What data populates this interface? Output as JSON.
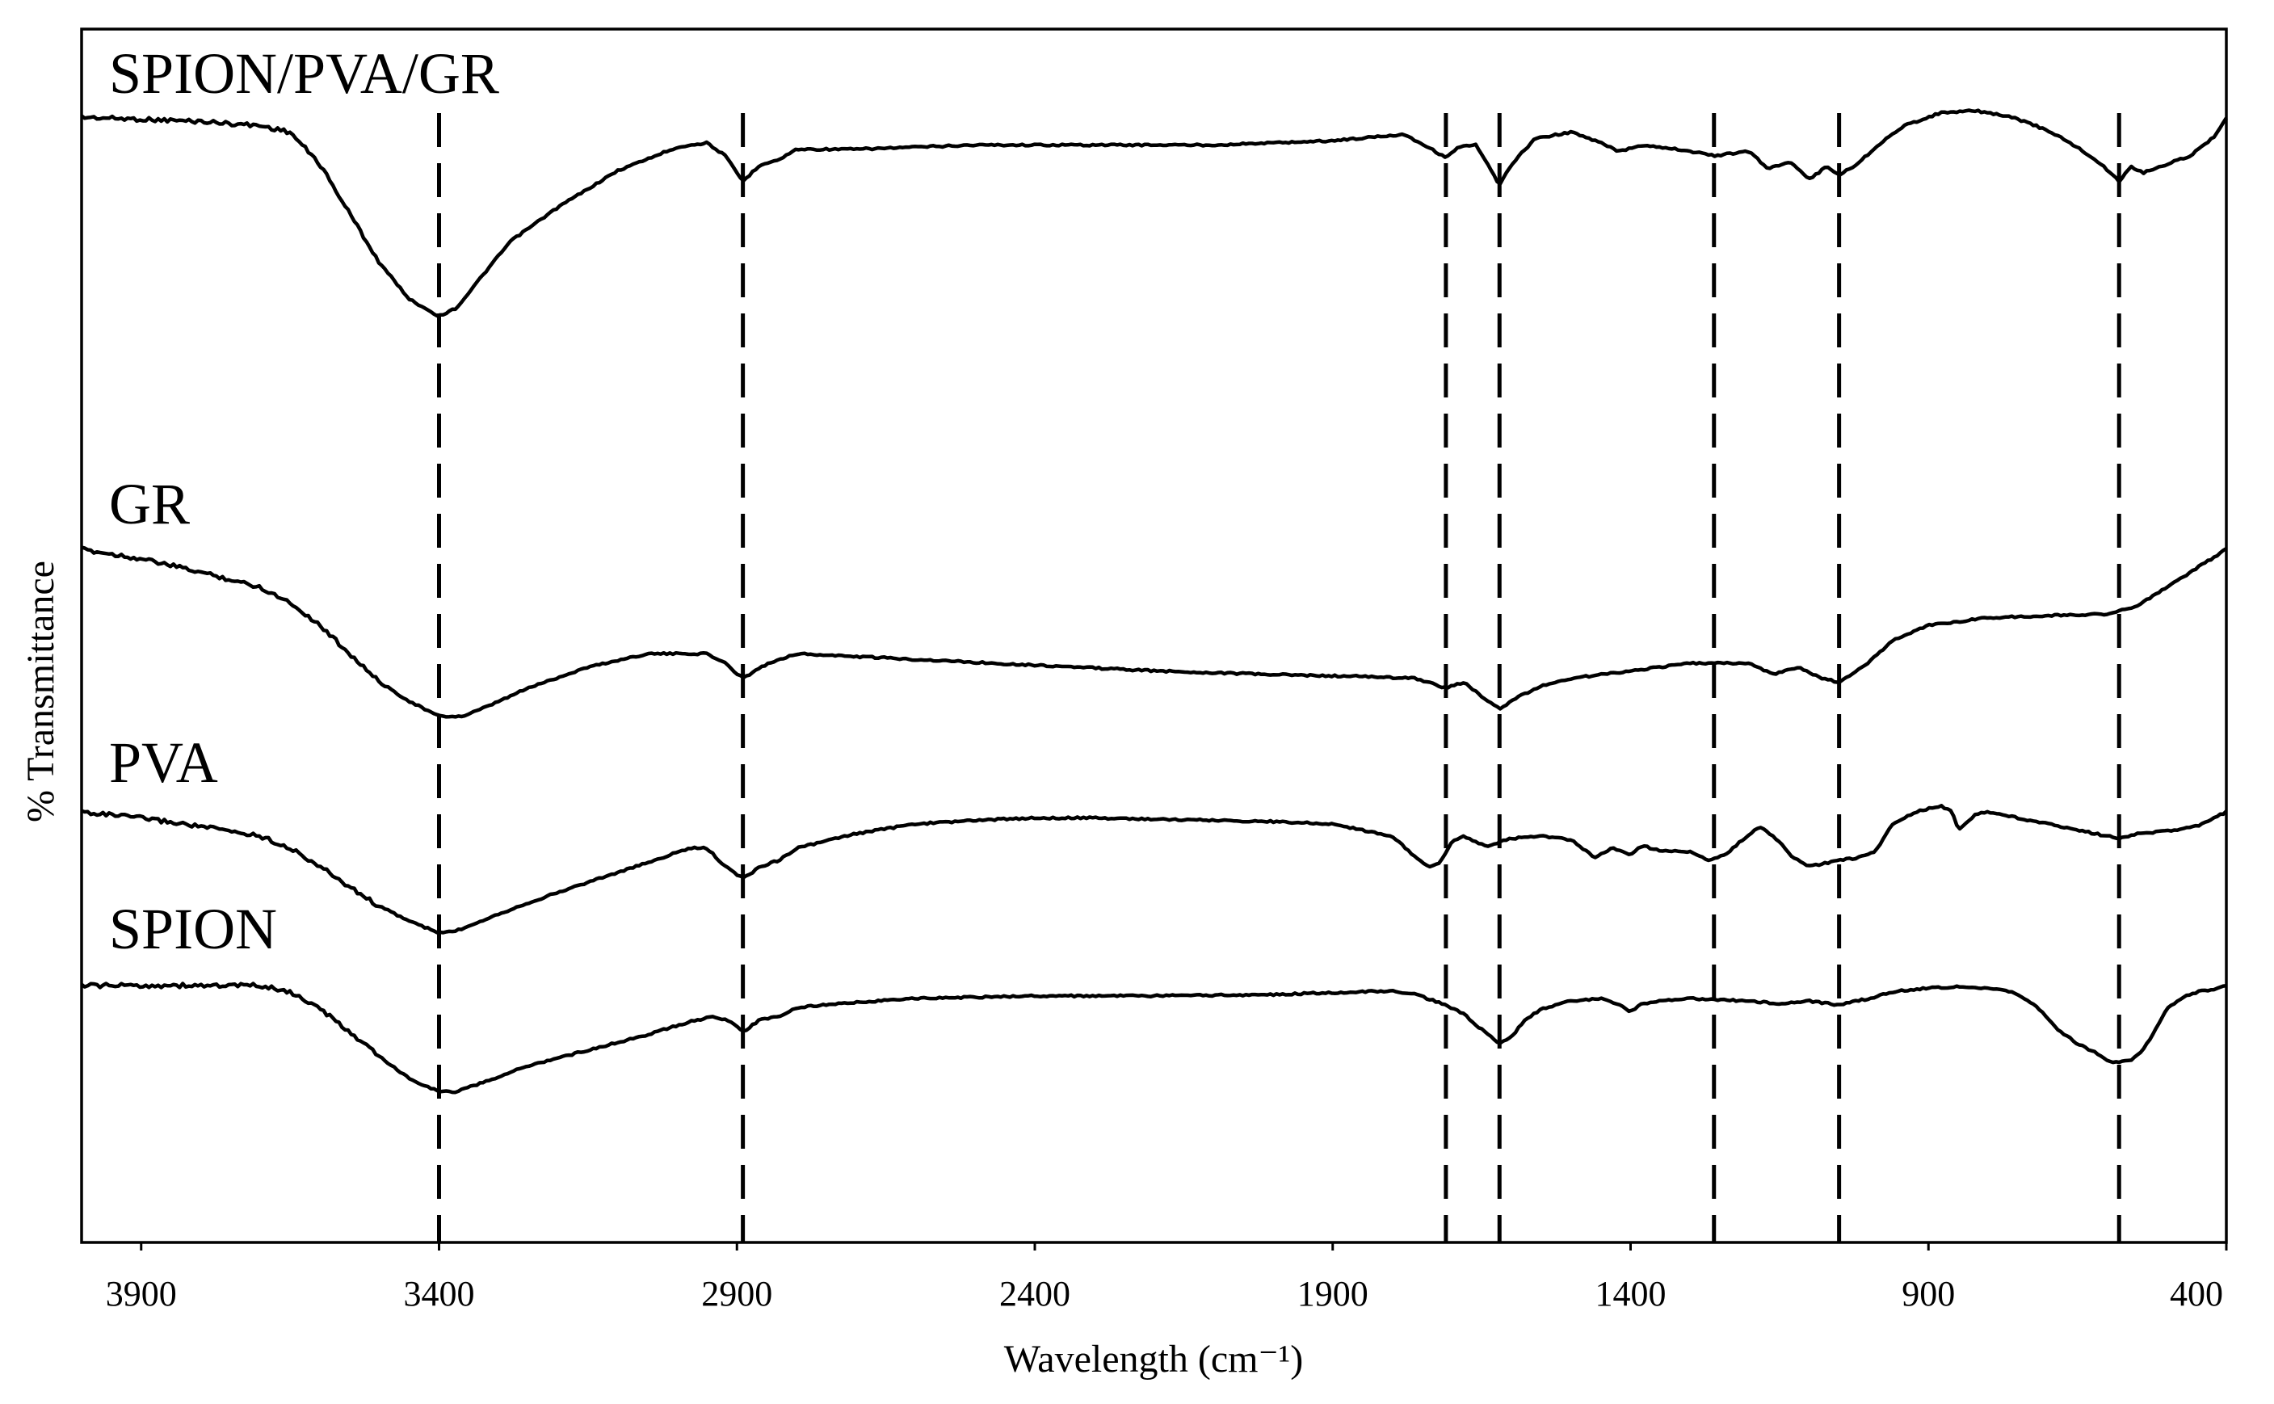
{
  "chart_data": {
    "type": "line",
    "title": "",
    "xlabel": "Wavelength (cm⁻¹)",
    "ylabel": "% Transmittance",
    "xlim": [
      4000,
      400
    ],
    "xticks": [
      3900,
      3400,
      2900,
      2400,
      1900,
      1400,
      900,
      400
    ],
    "grid": false,
    "legend": "inline labels",
    "reference_lines_x": [
      3400,
      2890,
      1710,
      1620,
      1260,
      1050,
      580
    ],
    "series": [
      {
        "name": "SPION/PVA/GR",
        "label": "SPION/PVA/GR",
        "points": [
          [
            4000,
            0.0
          ],
          [
            3900,
            -0.01
          ],
          [
            3800,
            -0.02
          ],
          [
            3700,
            -0.04
          ],
          [
            3650,
            -0.07
          ],
          [
            3600,
            -0.22
          ],
          [
            3550,
            -0.45
          ],
          [
            3500,
            -0.68
          ],
          [
            3450,
            -0.85
          ],
          [
            3400,
            -0.93
          ],
          [
            3370,
            -0.89
          ],
          [
            3330,
            -0.75
          ],
          [
            3280,
            -0.58
          ],
          [
            3200,
            -0.42
          ],
          [
            3100,
            -0.25
          ],
          [
            3000,
            -0.14
          ],
          [
            2950,
            -0.12
          ],
          [
            2920,
            -0.18
          ],
          [
            2890,
            -0.3
          ],
          [
            2860,
            -0.22
          ],
          [
            2830,
            -0.2
          ],
          [
            2800,
            -0.15
          ],
          [
            2700,
            -0.15
          ],
          [
            2600,
            -0.14
          ],
          [
            2500,
            -0.13
          ],
          [
            2300,
            -0.13
          ],
          [
            2100,
            -0.13
          ],
          [
            1900,
            -0.11
          ],
          [
            1780,
            -0.08
          ],
          [
            1740,
            -0.14
          ],
          [
            1710,
            -0.19
          ],
          [
            1690,
            -0.14
          ],
          [
            1660,
            -0.13
          ],
          [
            1640,
            -0.22
          ],
          [
            1620,
            -0.32
          ],
          [
            1600,
            -0.22
          ],
          [
            1560,
            -0.1
          ],
          [
            1500,
            -0.07
          ],
          [
            1450,
            -0.12
          ],
          [
            1420,
            -0.16
          ],
          [
            1380,
            -0.13
          ],
          [
            1320,
            -0.15
          ],
          [
            1260,
            -0.18
          ],
          [
            1200,
            -0.16
          ],
          [
            1170,
            -0.24
          ],
          [
            1130,
            -0.21
          ],
          [
            1100,
            -0.29
          ],
          [
            1070,
            -0.23
          ],
          [
            1050,
            -0.27
          ],
          [
            1020,
            -0.22
          ],
          [
            980,
            -0.12
          ],
          [
            940,
            -0.04
          ],
          [
            880,
            0.02
          ],
          [
            820,
            0.03
          ],
          [
            760,
            0.0
          ],
          [
            720,
            -0.04
          ],
          [
            680,
            -0.09
          ],
          [
            640,
            -0.16
          ],
          [
            610,
            -0.22
          ],
          [
            580,
            -0.3
          ],
          [
            560,
            -0.23
          ],
          [
            540,
            -0.26
          ],
          [
            500,
            -0.22
          ],
          [
            460,
            -0.18
          ],
          [
            420,
            -0.09
          ],
          [
            400,
            0.0
          ]
        ]
      },
      {
        "name": "GR",
        "label": "GR",
        "points": [
          [
            4000,
            0.0
          ],
          [
            3900,
            -0.05
          ],
          [
            3800,
            -0.12
          ],
          [
            3700,
            -0.2
          ],
          [
            3650,
            -0.28
          ],
          [
            3600,
            -0.4
          ],
          [
            3550,
            -0.55
          ],
          [
            3500,
            -0.7
          ],
          [
            3450,
            -0.8
          ],
          [
            3400,
            -0.88
          ],
          [
            3360,
            -0.88
          ],
          [
            3320,
            -0.83
          ],
          [
            3250,
            -0.73
          ],
          [
            3150,
            -0.62
          ],
          [
            3050,
            -0.55
          ],
          [
            2950,
            -0.55
          ],
          [
            2920,
            -0.6
          ],
          [
            2890,
            -0.68
          ],
          [
            2860,
            -0.62
          ],
          [
            2830,
            -0.58
          ],
          [
            2800,
            -0.55
          ],
          [
            2600,
            -0.58
          ],
          [
            2400,
            -0.61
          ],
          [
            2200,
            -0.64
          ],
          [
            2000,
            -0.66
          ],
          [
            1850,
            -0.67
          ],
          [
            1760,
            -0.68
          ],
          [
            1710,
            -0.73
          ],
          [
            1680,
            -0.7
          ],
          [
            1640,
            -0.8
          ],
          [
            1620,
            -0.84
          ],
          [
            1590,
            -0.78
          ],
          [
            1550,
            -0.72
          ],
          [
            1500,
            -0.68
          ],
          [
            1400,
            -0.64
          ],
          [
            1300,
            -0.6
          ],
          [
            1200,
            -0.6
          ],
          [
            1160,
            -0.66
          ],
          [
            1120,
            -0.62
          ],
          [
            1080,
            -0.68
          ],
          [
            1050,
            -0.7
          ],
          [
            1010,
            -0.62
          ],
          [
            960,
            -0.48
          ],
          [
            900,
            -0.4
          ],
          [
            800,
            -0.36
          ],
          [
            700,
            -0.35
          ],
          [
            600,
            -0.34
          ],
          [
            550,
            -0.3
          ],
          [
            500,
            -0.2
          ],
          [
            450,
            -0.1
          ],
          [
            400,
            0.0
          ]
        ]
      },
      {
        "name": "PVA",
        "label": "PVA",
        "points": [
          [
            4000,
            0.0
          ],
          [
            3900,
            -0.05
          ],
          [
            3800,
            -0.12
          ],
          [
            3700,
            -0.2
          ],
          [
            3650,
            -0.3
          ],
          [
            3600,
            -0.45
          ],
          [
            3550,
            -0.62
          ],
          [
            3500,
            -0.78
          ],
          [
            3450,
            -0.9
          ],
          [
            3400,
            -1.0
          ],
          [
            3370,
            -0.98
          ],
          [
            3320,
            -0.88
          ],
          [
            3250,
            -0.75
          ],
          [
            3150,
            -0.58
          ],
          [
            3050,
            -0.42
          ],
          [
            2980,
            -0.3
          ],
          [
            2950,
            -0.3
          ],
          [
            2920,
            -0.45
          ],
          [
            2890,
            -0.55
          ],
          [
            2860,
            -0.45
          ],
          [
            2830,
            -0.4
          ],
          [
            2800,
            -0.3
          ],
          [
            2700,
            -0.18
          ],
          [
            2600,
            -0.1
          ],
          [
            2500,
            -0.07
          ],
          [
            2400,
            -0.05
          ],
          [
            2300,
            -0.05
          ],
          [
            2200,
            -0.06
          ],
          [
            2100,
            -0.07
          ],
          [
            2000,
            -0.08
          ],
          [
            1900,
            -0.1
          ],
          [
            1800,
            -0.2
          ],
          [
            1760,
            -0.38
          ],
          [
            1740,
            -0.45
          ],
          [
            1720,
            -0.42
          ],
          [
            1700,
            -0.25
          ],
          [
            1680,
            -0.2
          ],
          [
            1660,
            -0.25
          ],
          [
            1640,
            -0.28
          ],
          [
            1620,
            -0.25
          ],
          [
            1600,
            -0.22
          ],
          [
            1550,
            -0.2
          ],
          [
            1500,
            -0.23
          ],
          [
            1460,
            -0.38
          ],
          [
            1430,
            -0.3
          ],
          [
            1400,
            -0.35
          ],
          [
            1380,
            -0.28
          ],
          [
            1350,
            -0.32
          ],
          [
            1300,
            -0.33
          ],
          [
            1270,
            -0.4
          ],
          [
            1240,
            -0.35
          ],
          [
            1200,
            -0.18
          ],
          [
            1180,
            -0.12
          ],
          [
            1150,
            -0.25
          ],
          [
            1130,
            -0.37
          ],
          [
            1100,
            -0.45
          ],
          [
            1070,
            -0.42
          ],
          [
            1050,
            -0.4
          ],
          [
            1020,
            -0.38
          ],
          [
            990,
            -0.33
          ],
          [
            960,
            -0.1
          ],
          [
            920,
            0.0
          ],
          [
            880,
            0.05
          ],
          [
            860,
            0.0
          ],
          [
            850,
            -0.15
          ],
          [
            820,
            -0.02
          ],
          [
            800,
            0.0
          ],
          [
            750,
            -0.05
          ],
          [
            700,
            -0.1
          ],
          [
            650,
            -0.15
          ],
          [
            600,
            -0.2
          ],
          [
            580,
            -0.22
          ],
          [
            550,
            -0.18
          ],
          [
            500,
            -0.16
          ],
          [
            450,
            -0.12
          ],
          [
            420,
            -0.05
          ],
          [
            400,
            0.0
          ]
        ]
      },
      {
        "name": "SPION",
        "label": "SPION",
        "points": [
          [
            4000,
            0.0
          ],
          [
            3900,
            0.0
          ],
          [
            3800,
            0.0
          ],
          [
            3700,
            0.0
          ],
          [
            3650,
            -0.05
          ],
          [
            3600,
            -0.18
          ],
          [
            3550,
            -0.36
          ],
          [
            3500,
            -0.55
          ],
          [
            3450,
            -0.72
          ],
          [
            3400,
            -0.82
          ],
          [
            3370,
            -0.82
          ],
          [
            3320,
            -0.74
          ],
          [
            3250,
            -0.62
          ],
          [
            3150,
            -0.5
          ],
          [
            3050,
            -0.38
          ],
          [
            2980,
            -0.28
          ],
          [
            2940,
            -0.24
          ],
          [
            2910,
            -0.28
          ],
          [
            2890,
            -0.36
          ],
          [
            2860,
            -0.26
          ],
          [
            2830,
            -0.24
          ],
          [
            2800,
            -0.17
          ],
          [
            2700,
            -0.13
          ],
          [
            2600,
            -0.1
          ],
          [
            2400,
            -0.08
          ],
          [
            2200,
            -0.08
          ],
          [
            2000,
            -0.07
          ],
          [
            1800,
            -0.04
          ],
          [
            1760,
            -0.07
          ],
          [
            1710,
            -0.15
          ],
          [
            1680,
            -0.22
          ],
          [
            1650,
            -0.34
          ],
          [
            1620,
            -0.45
          ],
          [
            1600,
            -0.4
          ],
          [
            1580,
            -0.28
          ],
          [
            1550,
            -0.18
          ],
          [
            1500,
            -0.12
          ],
          [
            1450,
            -0.1
          ],
          [
            1420,
            -0.15
          ],
          [
            1400,
            -0.2
          ],
          [
            1380,
            -0.14
          ],
          [
            1350,
            -0.12
          ],
          [
            1300,
            -0.1
          ],
          [
            1250,
            -0.11
          ],
          [
            1200,
            -0.12
          ],
          [
            1150,
            -0.14
          ],
          [
            1100,
            -0.12
          ],
          [
            1050,
            -0.15
          ],
          [
            1000,
            -0.1
          ],
          [
            950,
            -0.04
          ],
          [
            900,
            -0.02
          ],
          [
            850,
            -0.01
          ],
          [
            800,
            -0.02
          ],
          [
            760,
            -0.05
          ],
          [
            720,
            -0.15
          ],
          [
            680,
            -0.35
          ],
          [
            650,
            -0.45
          ],
          [
            620,
            -0.52
          ],
          [
            590,
            -0.6
          ],
          [
            560,
            -0.58
          ],
          [
            540,
            -0.5
          ],
          [
            520,
            -0.35
          ],
          [
            500,
            -0.18
          ],
          [
            470,
            -0.08
          ],
          [
            440,
            -0.04
          ],
          [
            420,
            -0.03
          ],
          [
            400,
            0.0
          ]
        ]
      }
    ]
  }
}
